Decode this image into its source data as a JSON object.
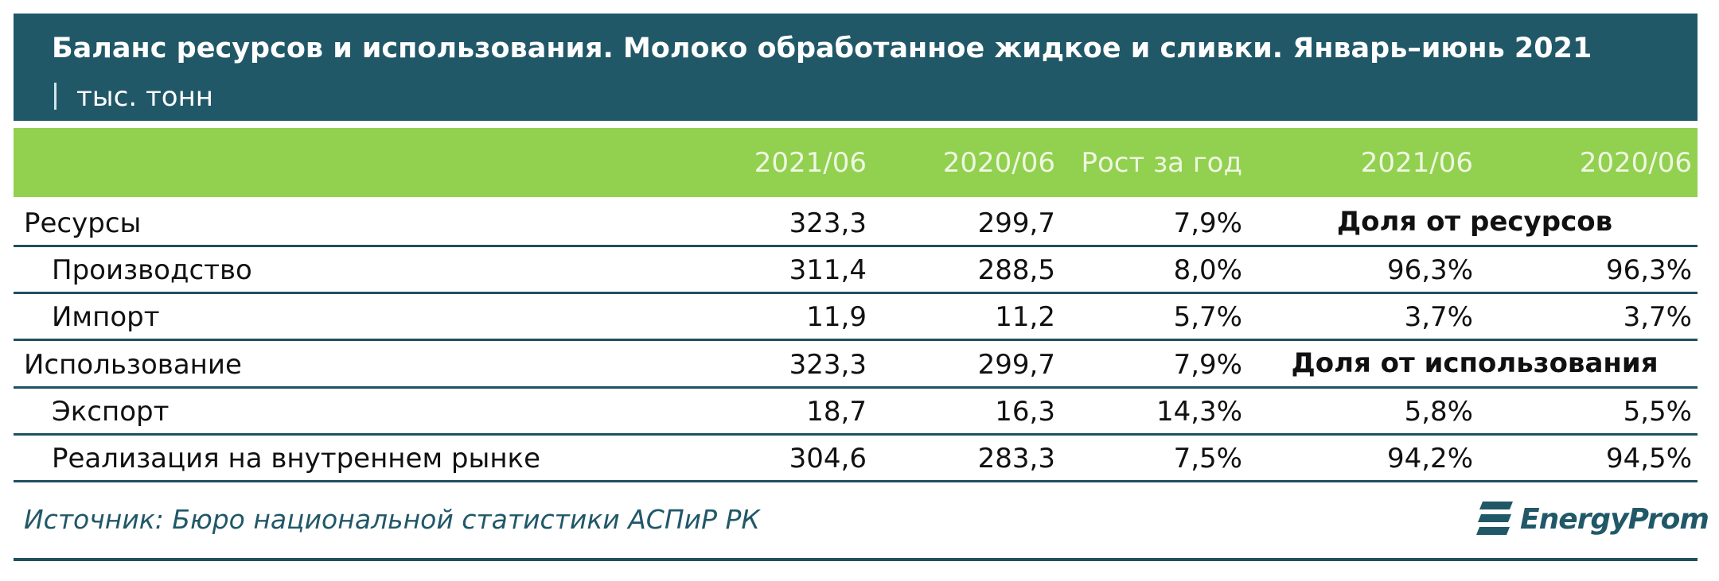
{
  "header": {
    "title": "Баланс ресурсов и использования. Молоко обработанное жидкое и сливки. Январь–июнь 2021",
    "unit": "тыс. тонн"
  },
  "table": {
    "columns": [
      "2021/06",
      "2020/06",
      "Рост за год",
      "2021/06",
      "2020/06"
    ],
    "sections": [
      {
        "label": "Ресурсы",
        "values": [
          "323,3",
          "299,7",
          "7,9%"
        ],
        "share_title": "Доля от ресурсов",
        "items": [
          {
            "label": "Производство",
            "values": [
              "311,4",
              "288,5",
              "8,0%",
              "96,3%",
              "96,3%"
            ]
          },
          {
            "label": "Импорт",
            "values": [
              "11,9",
              "11,2",
              "5,7%",
              "3,7%",
              "3,7%"
            ]
          }
        ]
      },
      {
        "label": "Использование",
        "values": [
          "323,3",
          "299,7",
          "7,9%"
        ],
        "share_title": "Доля от использования",
        "items": [
          {
            "label": "Экспорт",
            "values": [
              "18,7",
              "16,3",
              "14,3%",
              "5,8%",
              "5,5%"
            ]
          },
          {
            "label": "Реализация на внутреннем рынке",
            "values": [
              "304,6",
              "283,3",
              "7,5%",
              "94,2%",
              "94,5%"
            ]
          }
        ]
      }
    ]
  },
  "footer": {
    "source": "Источник: Бюро национальной статистики АСПиР РК",
    "logo": "EnergyProm"
  }
}
